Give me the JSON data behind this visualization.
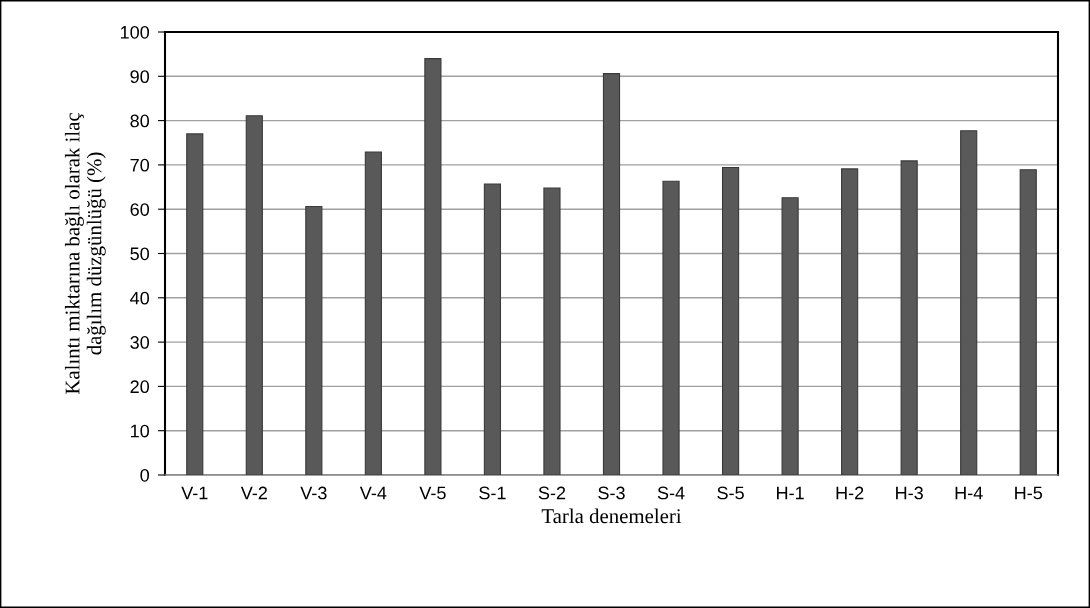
{
  "chart_data": {
    "type": "bar",
    "xlabel": "Tarla denemeleri",
    "ylabel": "Kalıntı miktarına bağlı olarak ilaç\ndağılım düzgünlüğü (%)",
    "categories": [
      "V-1",
      "V-2",
      "V-3",
      "V-4",
      "V-5",
      "S-1",
      "S-2",
      "S-3",
      "S-4",
      "S-5",
      "H-1",
      "H-2",
      "H-3",
      "H-4",
      "H-5"
    ],
    "values": [
      77,
      81.1,
      60.6,
      72.9,
      94,
      65.7,
      64.8,
      90.6,
      66.3,
      69.4,
      62.6,
      69.1,
      70.9,
      77.7,
      68.9
    ],
    "color": "#595959",
    "ylim": [
      0,
      100
    ],
    "yticks": [
      0,
      10,
      20,
      30,
      40,
      50,
      60,
      70,
      80,
      90,
      100
    ],
    "grid": "y"
  }
}
